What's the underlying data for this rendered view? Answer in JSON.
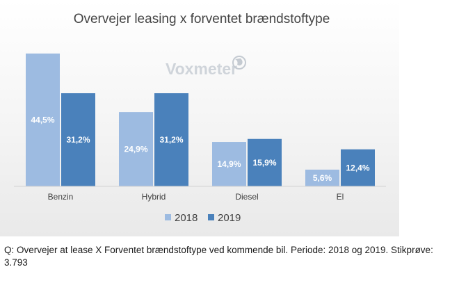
{
  "chart_data": {
    "type": "bar",
    "title": "Overvejer leasing  x forventet brændstoftype",
    "categories": [
      "Benzin",
      "Hybrid",
      "Diesel",
      "El"
    ],
    "series": [
      {
        "name": "2018",
        "color": "#9dbbe1",
        "values": [
          44.5,
          24.9,
          14.9,
          5.6
        ],
        "labels": [
          "44,5%",
          "24,9%",
          "14,9%",
          "5,6%"
        ]
      },
      {
        "name": "2019",
        "color": "#4a81bb",
        "values": [
          31.2,
          31.2,
          15.9,
          12.4
        ],
        "labels": [
          "31,2%",
          "31,2%",
          "15,9%",
          "12,4%"
        ]
      }
    ],
    "ylim": [
      0,
      44.5
    ],
    "legend_position": "bottom",
    "grid": false
  },
  "watermark": {
    "text": "Voxmeter",
    "icon": "globe-icon"
  },
  "caption": "Q: Overvejer at lease X Forventet brændstoftype ved kommende bil. Periode: 2018 og 2019. Stikprøve: 3.793"
}
